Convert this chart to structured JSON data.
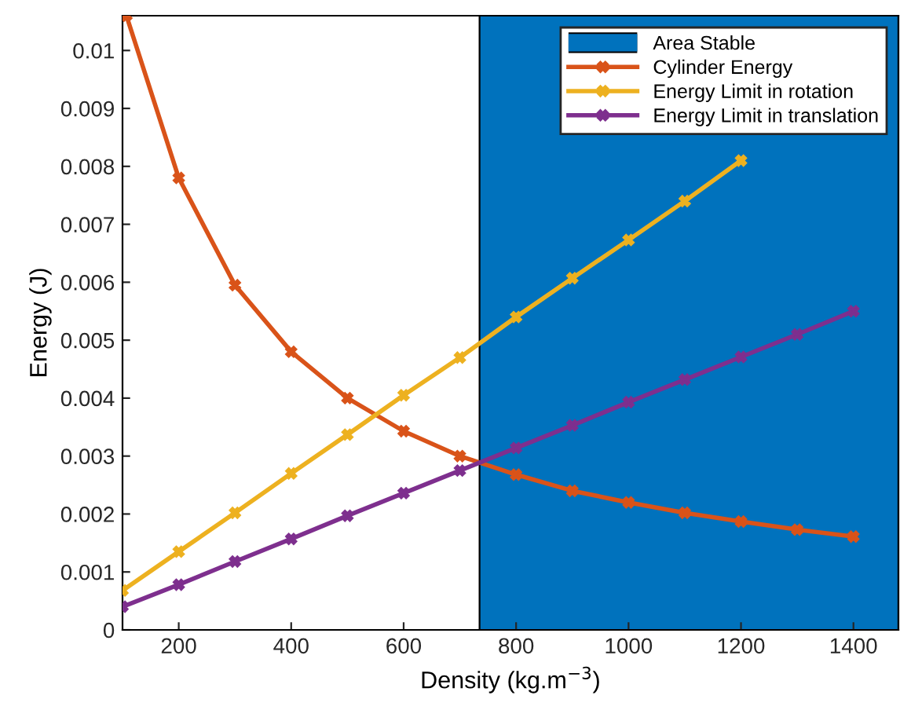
{
  "chart_data": {
    "type": "line",
    "xlabel": "Density (kg.m$^{−3}$)",
    "ylabel": "Energy (J)",
    "x": [
      100,
      200,
      300,
      400,
      500,
      600,
      700,
      800,
      900,
      1000,
      1100,
      1200,
      1300,
      1400
    ],
    "series": [
      {
        "name": "Cylinder Energy",
        "color": "#d95319",
        "x": [
          107,
          200,
          300,
          400,
          500,
          600,
          700,
          800,
          900,
          1000,
          1100,
          1200,
          1300,
          1400
        ],
        "values": [
          0.0106,
          0.0078,
          0.00595,
          0.0048,
          0.004,
          0.00343,
          0.003,
          0.00268,
          0.0024,
          0.0022,
          0.00202,
          0.00187,
          0.00173,
          0.00161
        ]
      },
      {
        "name": "Energy Limit in rotation",
        "color": "#edb120",
        "values": [
          0.00068,
          0.00135,
          0.00202,
          0.0027,
          0.00337,
          0.00405,
          0.0047,
          0.0054,
          0.00607,
          0.00673,
          0.0074,
          0.0081,
          null,
          null
        ]
      },
      {
        "name": "Energy Limit in translation",
        "color": "#7e2f8e",
        "values": [
          0.0004,
          0.00078,
          0.00118,
          0.00157,
          0.00197,
          0.00236,
          0.00275,
          0.00314,
          0.00353,
          0.00393,
          0.00432,
          0.00471,
          0.0051,
          0.0055
        ]
      }
    ],
    "bands": [
      {
        "axis": "x",
        "from": 735,
        "to": 1480,
        "label": "Area Stable",
        "color": "#0072bd"
      }
    ],
    "xlim": [
      100,
      1480
    ],
    "ylim": [
      0,
      0.0106
    ],
    "xticks": [
      200,
      400,
      600,
      800,
      1000,
      1200,
      1400
    ],
    "yticks": [
      0,
      0.001,
      0.002,
      0.003,
      0.004,
      0.005,
      0.006,
      0.007,
      0.008,
      0.009,
      0.01
    ],
    "marker": "cross",
    "line_style": "solid",
    "legend": "top right",
    "grid": false
  }
}
